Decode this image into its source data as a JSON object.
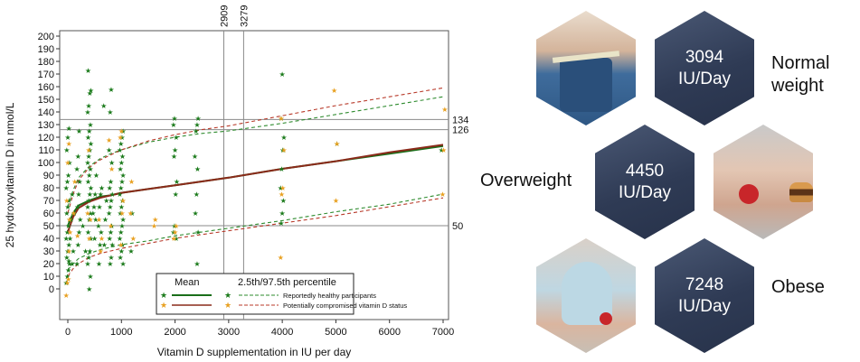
{
  "chart_data": {
    "type": "scatter",
    "xlabel": "Vitamin D supplementation in IU per day",
    "ylabel": "25 hydroxyvitamin D in nmol/L",
    "xlim": [
      -30,
      7050
    ],
    "ylim": [
      -10,
      200
    ],
    "x_ticks": [
      0,
      1000,
      2000,
      3000,
      4000,
      5000,
      6000,
      7000
    ],
    "y_ticks": [
      0,
      10,
      20,
      30,
      40,
      50,
      60,
      70,
      80,
      90,
      100,
      110,
      120,
      130,
      140,
      150,
      160,
      170,
      180,
      190,
      200
    ],
    "vlines": [
      {
        "x": 2909,
        "label": "2909"
      },
      {
        "x": 3279,
        "label": "3279"
      }
    ],
    "hlines": [
      {
        "y": 134,
        "label": "134"
      },
      {
        "y": 126,
        "label": "126"
      },
      {
        "y": 50,
        "label": "50"
      }
    ],
    "legend": {
      "placement": "bottom-right",
      "header_mean": "Mean",
      "header_pct": "2.5th/97.5th percentile",
      "entries": [
        {
          "label": "Reportedly healthy participants",
          "color": "#1a7a1a"
        },
        {
          "label": "Potentially compromised vitamin D status",
          "color": "#e8a020"
        }
      ]
    },
    "series": [
      {
        "marker": "star",
        "color": "#1a7a1a",
        "points": [
          [
            0,
            5
          ],
          [
            0,
            10
          ],
          [
            0,
            15
          ],
          [
            0,
            20
          ],
          [
            0,
            25
          ],
          [
            0,
            30
          ],
          [
            0,
            35
          ],
          [
            0,
            40
          ],
          [
            0,
            45
          ],
          [
            0,
            50
          ],
          [
            0,
            55
          ],
          [
            0,
            60
          ],
          [
            0,
            65
          ],
          [
            0,
            70
          ],
          [
            0,
            80
          ],
          [
            0,
            85
          ],
          [
            0,
            90
          ],
          [
            0,
            100
          ],
          [
            0,
            110
          ],
          [
            0,
            120
          ],
          [
            0,
            127
          ],
          [
            50,
            22
          ],
          [
            50,
            40
          ],
          [
            50,
            55
          ],
          [
            50,
            75
          ],
          [
            100,
            20
          ],
          [
            100,
            30
          ],
          [
            100,
            60
          ],
          [
            200,
            20
          ],
          [
            200,
            35
          ],
          [
            200,
            45
          ],
          [
            200,
            55
          ],
          [
            200,
            65
          ],
          [
            200,
            75
          ],
          [
            200,
            85
          ],
          [
            200,
            95
          ],
          [
            200,
            105
          ],
          [
            200,
            125
          ],
          [
            300,
            30
          ],
          [
            300,
            50
          ],
          [
            400,
            0
          ],
          [
            400,
            10
          ],
          [
            400,
            20
          ],
          [
            400,
            25
          ],
          [
            400,
            30
          ],
          [
            400,
            40
          ],
          [
            400,
            45
          ],
          [
            400,
            55
          ],
          [
            400,
            60
          ],
          [
            400,
            65
          ],
          [
            400,
            70
          ],
          [
            400,
            75
          ],
          [
            400,
            80
          ],
          [
            400,
            85
          ],
          [
            400,
            90
          ],
          [
            400,
            95
          ],
          [
            400,
            100
          ],
          [
            400,
            105
          ],
          [
            400,
            110
          ],
          [
            400,
            115
          ],
          [
            400,
            120
          ],
          [
            400,
            125
          ],
          [
            400,
            130
          ],
          [
            400,
            140
          ],
          [
            400,
            145
          ],
          [
            400,
            155
          ],
          [
            400,
            157
          ],
          [
            400,
            173
          ],
          [
            500,
            40
          ],
          [
            500,
            55
          ],
          [
            500,
            60
          ],
          [
            500,
            65
          ],
          [
            500,
            75
          ],
          [
            500,
            90
          ],
          [
            600,
            20
          ],
          [
            600,
            35
          ],
          [
            600,
            45
          ],
          [
            600,
            50
          ],
          [
            600,
            65
          ],
          [
            600,
            75
          ],
          [
            600,
            80
          ],
          [
            700,
            35
          ],
          [
            700,
            55
          ],
          [
            700,
            70
          ],
          [
            700,
            145
          ],
          [
            800,
            20
          ],
          [
            800,
            25
          ],
          [
            800,
            35
          ],
          [
            800,
            40
          ],
          [
            800,
            45
          ],
          [
            800,
            50
          ],
          [
            800,
            60
          ],
          [
            800,
            65
          ],
          [
            800,
            70
          ],
          [
            800,
            75
          ],
          [
            800,
            80
          ],
          [
            800,
            85
          ],
          [
            800,
            100
          ],
          [
            800,
            110
          ],
          [
            800,
            140
          ],
          [
            800,
            158
          ],
          [
            1000,
            20
          ],
          [
            1000,
            25
          ],
          [
            1000,
            30
          ],
          [
            1000,
            35
          ],
          [
            1000,
            40
          ],
          [
            1000,
            45
          ],
          [
            1000,
            50
          ],
          [
            1000,
            55
          ],
          [
            1000,
            60
          ],
          [
            1000,
            65
          ],
          [
            1000,
            70
          ],
          [
            1000,
            75
          ],
          [
            1000,
            80
          ],
          [
            1000,
            85
          ],
          [
            1000,
            90
          ],
          [
            1000,
            95
          ],
          [
            1000,
            100
          ],
          [
            1000,
            105
          ],
          [
            1000,
            110
          ],
          [
            1000,
            115
          ],
          [
            1000,
            120
          ],
          [
            1000,
            125
          ],
          [
            1200,
            30
          ],
          [
            1200,
            60
          ],
          [
            2000,
            40
          ],
          [
            2000,
            45
          ],
          [
            2000,
            50
          ],
          [
            2000,
            75
          ],
          [
            2000,
            85
          ],
          [
            2000,
            105
          ],
          [
            2000,
            110
          ],
          [
            2000,
            120
          ],
          [
            2000,
            130
          ],
          [
            2000,
            135
          ],
          [
            2400,
            20
          ],
          [
            2400,
            45
          ],
          [
            2400,
            60
          ],
          [
            2400,
            75
          ],
          [
            2400,
            95
          ],
          [
            2400,
            105
          ],
          [
            2400,
            125
          ],
          [
            2400,
            130
          ],
          [
            2400,
            135
          ],
          [
            4000,
            52
          ],
          [
            4000,
            60
          ],
          [
            4000,
            70
          ],
          [
            4000,
            80
          ],
          [
            4000,
            95
          ],
          [
            4000,
            110
          ],
          [
            4000,
            120
          ],
          [
            4000,
            135
          ],
          [
            4000,
            170
          ],
          [
            5000,
            115
          ],
          [
            7000,
            110
          ]
        ]
      },
      {
        "marker": "star",
        "color": "#e8a020",
        "points": [
          [
            0,
            -5
          ],
          [
            0,
            5
          ],
          [
            0,
            8
          ],
          [
            0,
            55
          ],
          [
            0,
            70
          ],
          [
            0,
            100
          ],
          [
            0,
            115
          ],
          [
            50,
            30
          ],
          [
            50,
            45
          ],
          [
            100,
            60
          ],
          [
            100,
            85
          ],
          [
            200,
            42
          ],
          [
            400,
            40
          ],
          [
            400,
            55
          ],
          [
            400,
            60
          ],
          [
            400,
            110
          ],
          [
            600,
            30
          ],
          [
            600,
            40
          ],
          [
            600,
            55
          ],
          [
            800,
            50
          ],
          [
            800,
            95
          ],
          [
            800,
            118
          ],
          [
            1000,
            35
          ],
          [
            1000,
            60
          ],
          [
            1000,
            70
          ],
          [
            1000,
            120
          ],
          [
            1000,
            125
          ],
          [
            1200,
            40
          ],
          [
            1200,
            60
          ],
          [
            1200,
            85
          ],
          [
            1600,
            50
          ],
          [
            1600,
            55
          ],
          [
            2000,
            40
          ],
          [
            2000,
            45
          ],
          [
            2000,
            50
          ],
          [
            4000,
            25
          ],
          [
            4000,
            75
          ],
          [
            4000,
            80
          ],
          [
            4000,
            110
          ],
          [
            4000,
            135
          ],
          [
            5000,
            70
          ],
          [
            5000,
            115
          ],
          [
            5000,
            157
          ],
          [
            7000,
            75
          ],
          [
            7000,
            110
          ],
          [
            7000,
            142
          ]
        ]
      }
    ],
    "curves": [
      {
        "kind": "mean",
        "group": "healthy",
        "color": "#1a6e1a",
        "dash": false,
        "points": [
          [
            0,
            50
          ],
          [
            100,
            60
          ],
          [
            200,
            66
          ],
          [
            400,
            70
          ],
          [
            600,
            73
          ],
          [
            800,
            74
          ],
          [
            1000,
            76
          ],
          [
            1500,
            79
          ],
          [
            2000,
            82
          ],
          [
            3000,
            88
          ],
          [
            4000,
            95
          ],
          [
            5000,
            101
          ],
          [
            6000,
            107
          ],
          [
            7000,
            113
          ]
        ]
      },
      {
        "kind": "mean",
        "group": "compromised",
        "color": "#8a2a1a",
        "dash": false,
        "points": [
          [
            0,
            45
          ],
          [
            100,
            57
          ],
          [
            200,
            64
          ],
          [
            400,
            69
          ],
          [
            600,
            72
          ],
          [
            800,
            74
          ],
          [
            1000,
            76
          ],
          [
            1500,
            79
          ],
          [
            2000,
            82
          ],
          [
            3000,
            88
          ],
          [
            4000,
            95
          ],
          [
            5000,
            101
          ],
          [
            6000,
            108
          ],
          [
            7000,
            114
          ]
        ]
      },
      {
        "kind": "upper",
        "group": "healthy",
        "color": "#2e8b2e",
        "dash": true,
        "points": [
          [
            0,
            65
          ],
          [
            100,
            78
          ],
          [
            200,
            88
          ],
          [
            400,
            97
          ],
          [
            600,
            103
          ],
          [
            800,
            107
          ],
          [
            1000,
            110
          ],
          [
            1500,
            116
          ],
          [
            2000,
            120
          ],
          [
            2500,
            123
          ],
          [
            3000,
            125
          ],
          [
            3500,
            128
          ],
          [
            4000,
            131
          ],
          [
            5000,
            138
          ],
          [
            6000,
            145
          ],
          [
            7000,
            152
          ]
        ]
      },
      {
        "kind": "upper",
        "group": "compromised",
        "color": "#b83a2a",
        "dash": true,
        "points": [
          [
            0,
            60
          ],
          [
            100,
            75
          ],
          [
            200,
            86
          ],
          [
            400,
            96
          ],
          [
            600,
            102
          ],
          [
            800,
            106
          ],
          [
            1000,
            110
          ],
          [
            1500,
            117
          ],
          [
            2000,
            122
          ],
          [
            2500,
            126
          ],
          [
            3000,
            129
          ],
          [
            3500,
            133
          ],
          [
            4000,
            137
          ],
          [
            5000,
            145
          ],
          [
            6000,
            152
          ],
          [
            7000,
            159
          ]
        ]
      },
      {
        "kind": "lower",
        "group": "healthy",
        "color": "#2e8b2e",
        "dash": true,
        "points": [
          [
            0,
            15
          ],
          [
            100,
            20
          ],
          [
            200,
            24
          ],
          [
            400,
            28
          ],
          [
            600,
            31
          ],
          [
            800,
            33
          ],
          [
            1000,
            35
          ],
          [
            1500,
            38
          ],
          [
            2000,
            42
          ],
          [
            3000,
            48
          ],
          [
            4000,
            54
          ],
          [
            5000,
            61
          ],
          [
            6000,
            67
          ],
          [
            7000,
            75
          ]
        ]
      },
      {
        "kind": "lower",
        "group": "compromised",
        "color": "#b83a2a",
        "dash": true,
        "points": [
          [
            0,
            10
          ],
          [
            100,
            16
          ],
          [
            200,
            20
          ],
          [
            400,
            25
          ],
          [
            600,
            28
          ],
          [
            800,
            30
          ],
          [
            1000,
            32
          ],
          [
            1500,
            36
          ],
          [
            2000,
            40
          ],
          [
            3000,
            46
          ],
          [
            4000,
            52
          ],
          [
            5000,
            58
          ],
          [
            6000,
            65
          ],
          [
            7000,
            72
          ]
        ]
      }
    ]
  },
  "panel": {
    "hex_normal": {
      "value": "3094",
      "unit": "IU/Day"
    },
    "hex_overweight": {
      "value": "4450",
      "unit": "IU/Day"
    },
    "hex_obese": {
      "value": "7248",
      "unit": "IU/Day"
    },
    "label_normal_line1": "Normal",
    "label_normal_line2": "weight",
    "label_overweight": "Overweight",
    "label_obese": "Obese",
    "photo_waist_icon": "measuring-tape-waist-photo",
    "photo_apple_burger_icon": "apple-and-burger-photo",
    "photo_obese_icon": "seated-person-with-apple-photo"
  }
}
